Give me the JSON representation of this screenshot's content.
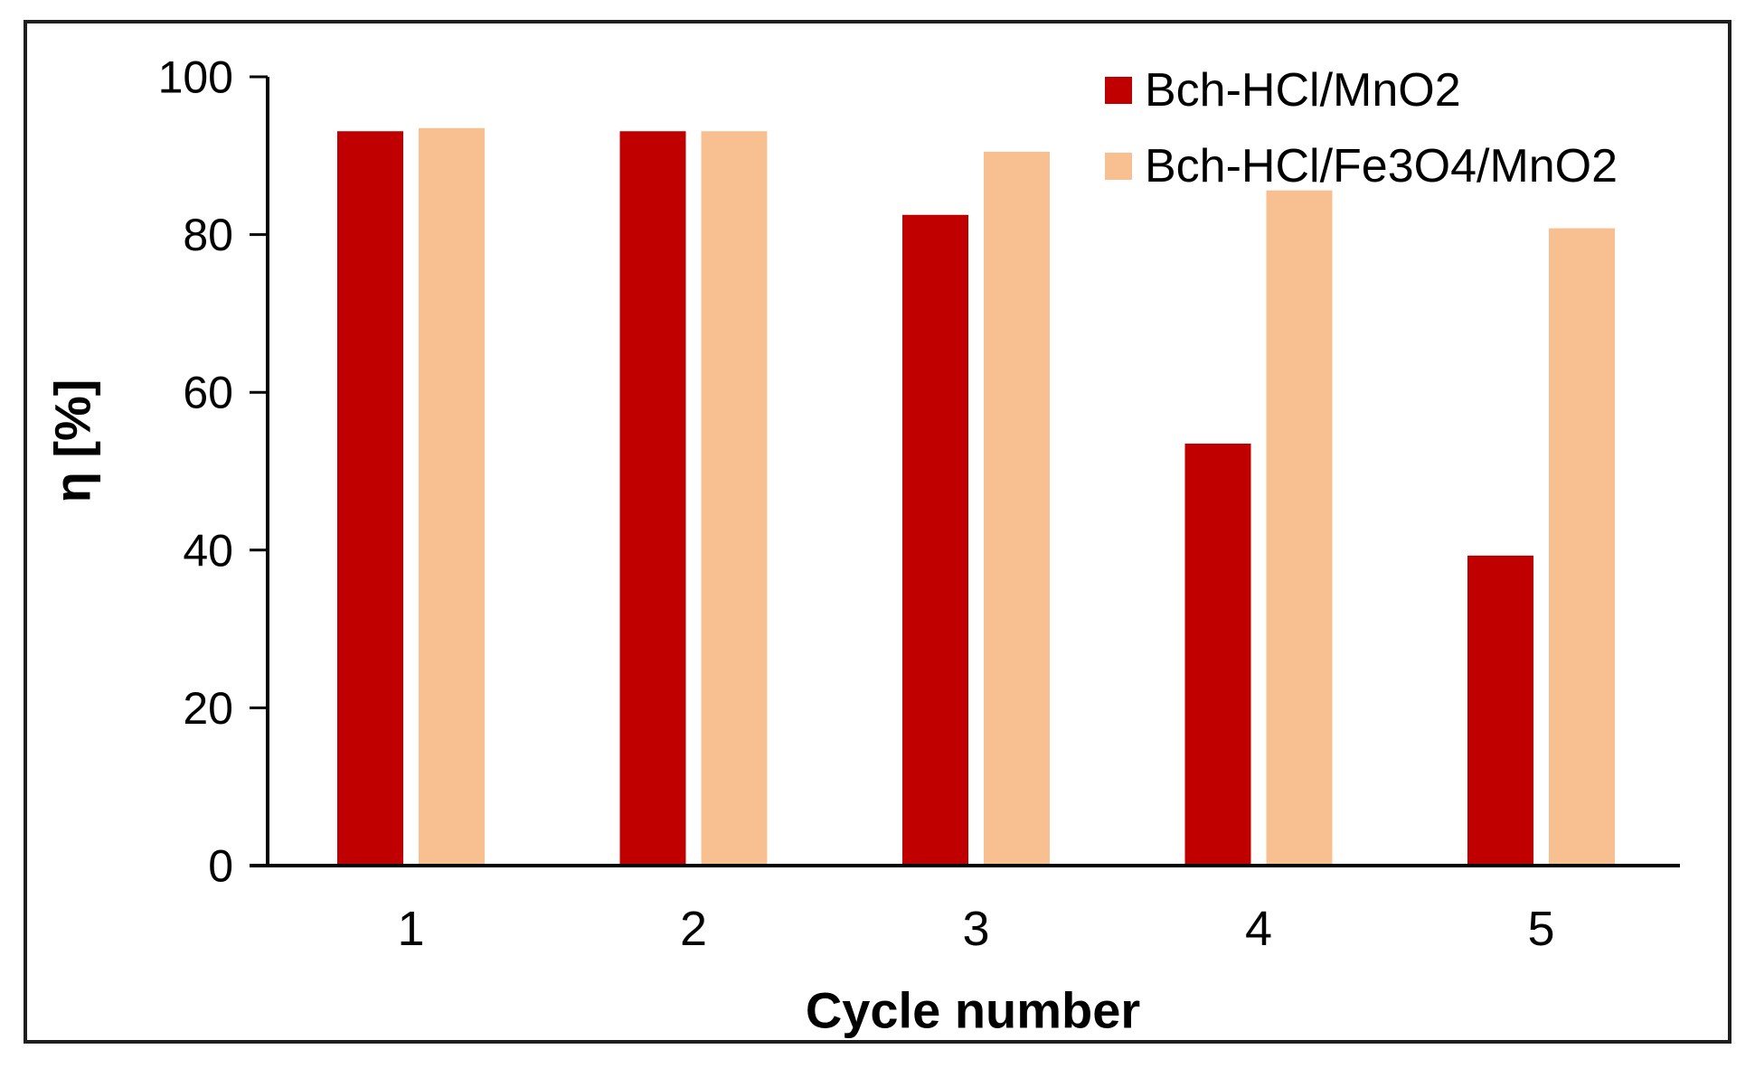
{
  "figure": {
    "background": "#ffffff",
    "frame_color": "#1f1f1f"
  },
  "chart_data": {
    "type": "bar",
    "title": "",
    "xlabel": "Cycle number",
    "ylabel": "η [%]",
    "categories": [
      "1",
      "2",
      "3",
      "4",
      "5"
    ],
    "series": [
      {
        "name": "Bch-HCl/MnO2",
        "color": "#C00000",
        "values": [
          93.1,
          93.1,
          82.5,
          53.5,
          39.3
        ]
      },
      {
        "name": "Bch-HCl/Fe3O4/MnO2",
        "color": "#F8C090",
        "values": [
          93.5,
          93.1,
          90.5,
          85.6,
          80.8
        ]
      }
    ],
    "ylim": [
      0,
      100
    ],
    "yticks": [
      0,
      20,
      40,
      60,
      80,
      100
    ],
    "grid": false,
    "legend_position": "top-right",
    "axis_color": "#000000",
    "tick_label_color": "#000000"
  }
}
